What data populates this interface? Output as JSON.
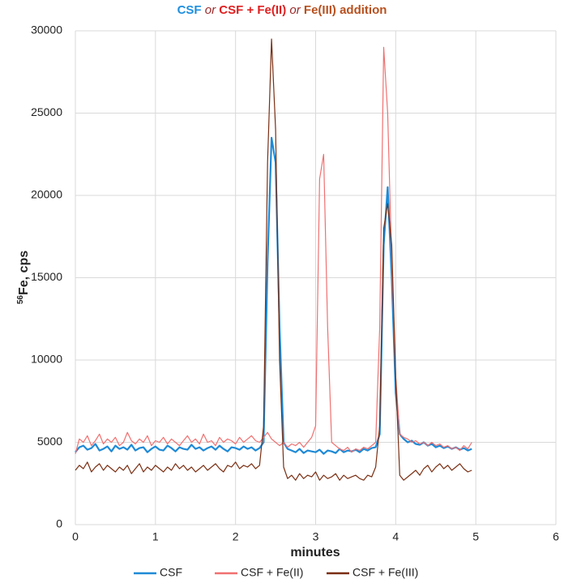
{
  "chart_data": {
    "type": "line",
    "title_parts": [
      {
        "text": "CSF",
        "color": "#1e8fe0",
        "italic": false
      },
      {
        "text": "or",
        "color": "#9b2a2a",
        "italic": true
      },
      {
        "text": "CSF + Fe(II)",
        "color": "#e02020",
        "italic": false
      },
      {
        "text": "or",
        "color": "#9b2a2a",
        "italic": true
      },
      {
        "text": "Fe(III) addition",
        "color": "#b8501e",
        "italic": false
      }
    ],
    "y_label_sup": "56",
    "y_label": "Fe, cps",
    "x_label": "minutes",
    "xlim": [
      0,
      6
    ],
    "xticks": [
      0,
      1,
      2,
      3,
      4,
      5,
      6
    ],
    "ylim": [
      0,
      30000
    ],
    "yticks": [
      0,
      5000,
      10000,
      15000,
      20000,
      25000,
      30000
    ],
    "grid": true,
    "legend": "bottom",
    "x": [
      0,
      0.05,
      0.1,
      0.15,
      0.2,
      0.25,
      0.3,
      0.35,
      0.4,
      0.45,
      0.5,
      0.55,
      0.6,
      0.65,
      0.7,
      0.75,
      0.8,
      0.85,
      0.9,
      0.95,
      1,
      1.05,
      1.1,
      1.15,
      1.2,
      1.25,
      1.3,
      1.35,
      1.4,
      1.45,
      1.5,
      1.55,
      1.6,
      1.65,
      1.7,
      1.75,
      1.8,
      1.85,
      1.9,
      1.95,
      2,
      2.05,
      2.1,
      2.15,
      2.2,
      2.25,
      2.3,
      2.35,
      2.4,
      2.45,
      2.5,
      2.55,
      2.6,
      2.65,
      2.7,
      2.75,
      2.8,
      2.85,
      2.9,
      2.95,
      3,
      3.05,
      3.1,
      3.15,
      3.2,
      3.25,
      3.3,
      3.35,
      3.4,
      3.45,
      3.5,
      3.55,
      3.6,
      3.65,
      3.7,
      3.75,
      3.8,
      3.85,
      3.9,
      3.95,
      4,
      4.05,
      4.1,
      4.15,
      4.2,
      4.25,
      4.3,
      4.35,
      4.4,
      4.45,
      4.5,
      4.55,
      4.6,
      4.65,
      4.7,
      4.75,
      4.8,
      4.85,
      4.9,
      4.95
    ],
    "series": [
      {
        "name": "CSF",
        "color": "#1f8ad6",
        "width": 2.2,
        "values": [
          4400,
          4700,
          4800,
          4550,
          4650,
          4900,
          4500,
          4600,
          4750,
          4450,
          4800,
          4600,
          4700,
          4550,
          4850,
          4500,
          4650,
          4700,
          4400,
          4600,
          4750,
          4550,
          4500,
          4800,
          4650,
          4450,
          4700,
          4600,
          4550,
          4850,
          4600,
          4700,
          4500,
          4650,
          4750,
          4550,
          4800,
          4600,
          4450,
          4700,
          4650,
          4550,
          4750,
          4600,
          4700,
          4500,
          4650,
          5000,
          16000,
          23500,
          22000,
          12000,
          5000,
          4600,
          4500,
          4400,
          4600,
          4350,
          4500,
          4450,
          4400,
          4550,
          4300,
          4500,
          4450,
          4350,
          4600,
          4400,
          4500,
          4450,
          4550,
          4400,
          4600,
          4500,
          4650,
          4700,
          5500,
          17000,
          20500,
          15000,
          8000,
          5500,
          5200,
          5000,
          5100,
          4900,
          4850,
          5000,
          4800,
          4900,
          4700,
          4800,
          4650,
          4750,
          4600,
          4700,
          4550,
          4650,
          4500,
          4600
        ]
      },
      {
        "name": "CSF +  Fe(II)",
        "color": "#f07070",
        "width": 1.2,
        "values": [
          4300,
          5200,
          5000,
          5400,
          4800,
          5100,
          5500,
          4900,
          5200,
          5000,
          5300,
          4800,
          5000,
          5600,
          5100,
          4900,
          5200,
          5000,
          5400,
          4800,
          5100,
          5000,
          5300,
          4900,
          5200,
          5000,
          4800,
          5100,
          5400,
          5000,
          5200,
          4900,
          5500,
          5000,
          5100,
          4800,
          5300,
          5000,
          5200,
          5100,
          4900,
          5300,
          5000,
          5200,
          5400,
          5100,
          5000,
          5300,
          5600,
          5200,
          5000,
          4800,
          5000,
          4700,
          4900,
          4800,
          5000,
          4700,
          5000,
          5300,
          6000,
          21000,
          22500,
          12000,
          5000,
          4800,
          4600,
          4500,
          4700,
          4400,
          4600,
          4500,
          4700,
          4600,
          4800,
          5000,
          12000,
          29000,
          25000,
          16000,
          9000,
          5500,
          5300,
          5200,
          5000,
          5100,
          4900,
          5000,
          4800,
          5000,
          4800,
          4900,
          4700,
          4800,
          4600,
          4700,
          4500,
          4800,
          4600,
          5000
        ]
      },
      {
        "name": "CSF + Fe(III)",
        "color": "#7a2e12",
        "width": 1.2,
        "values": [
          3300,
          3600,
          3400,
          3800,
          3200,
          3500,
          3700,
          3300,
          3600,
          3400,
          3200,
          3500,
          3300,
          3600,
          3100,
          3400,
          3700,
          3200,
          3500,
          3300,
          3600,
          3400,
          3200,
          3500,
          3300,
          3700,
          3400,
          3600,
          3300,
          3500,
          3200,
          3400,
          3600,
          3300,
          3500,
          3700,
          3400,
          3200,
          3600,
          3500,
          3800,
          3400,
          3600,
          3500,
          3700,
          3400,
          3600,
          6000,
          22000,
          29500,
          24000,
          10000,
          3500,
          2800,
          3000,
          2700,
          3100,
          2800,
          3000,
          2900,
          3200,
          2700,
          3000,
          2800,
          2900,
          3100,
          2700,
          3000,
          2800,
          2900,
          3000,
          2800,
          2700,
          3000,
          2900,
          3500,
          6000,
          18000,
          19500,
          17000,
          9000,
          3000,
          2700,
          2900,
          3100,
          3300,
          3000,
          3400,
          3600,
          3200,
          3500,
          3700,
          3400,
          3600,
          3300,
          3500,
          3700,
          3400,
          3200,
          3300
        ]
      }
    ]
  }
}
